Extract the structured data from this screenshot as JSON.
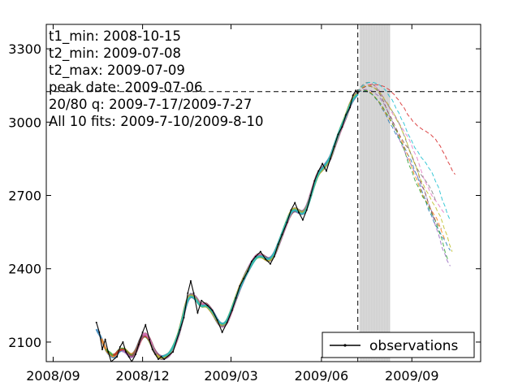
{
  "chart_data": {
    "type": "line",
    "title": "",
    "xlabel": "",
    "ylabel": "",
    "x_axis": "date",
    "xlim": [
      "2008-08-25",
      "2009-11-10"
    ],
    "ylim": [
      2020,
      3400
    ],
    "y_ticks": [
      2100,
      2400,
      2700,
      3000,
      3300
    ],
    "x_ticks": [
      "2008-09-01",
      "2008-12-01",
      "2009-03-01",
      "2009-06-01",
      "2009-09-01"
    ],
    "x_tick_labels": [
      "2008/09",
      "2008/12",
      "2009/03",
      "2009/06",
      "2009/09"
    ],
    "grid": false,
    "legend": {
      "position": "lower right",
      "entries": [
        "observations"
      ]
    },
    "annotations": [
      "t1_min: 2008-10-15",
      "t2_min: 2009-07-08",
      "t2_max: 2009-07-09",
      "peak date: 2009-07-06",
      "20/80 q: 2009-7-17/2009-7-27",
      "All 10 fits: 2009-7-10/2009-8-10"
    ],
    "reference_lines": {
      "vertical_date": "2009-07-08",
      "horizontal_value": 3125
    },
    "shaded_span": [
      "2009-07-10",
      "2009-08-10"
    ],
    "observations": {
      "name": "observations",
      "color": "#000000",
      "points": [
        [
          "2008-10-15",
          2180
        ],
        [
          "2008-10-18",
          2140
        ],
        [
          "2008-10-21",
          2070
        ],
        [
          "2008-10-24",
          2110
        ],
        [
          "2008-10-27",
          2060
        ],
        [
          "2008-10-30",
          2020
        ],
        [
          "2008-11-05",
          2040
        ],
        [
          "2008-11-08",
          2080
        ],
        [
          "2008-11-11",
          2100
        ],
        [
          "2008-11-14",
          2060
        ],
        [
          "2008-11-17",
          2040
        ],
        [
          "2008-11-20",
          2020
        ],
        [
          "2008-11-24",
          2050
        ],
        [
          "2008-11-27",
          2090
        ],
        [
          "2008-12-01",
          2140
        ],
        [
          "2008-12-04",
          2170
        ],
        [
          "2008-12-08",
          2110
        ],
        [
          "2008-12-11",
          2070
        ],
        [
          "2008-12-14",
          2050
        ],
        [
          "2008-12-17",
          2030
        ],
        [
          "2008-12-20",
          2040
        ],
        [
          "2008-12-23",
          2030
        ],
        [
          "2009-01-01",
          2060
        ],
        [
          "2009-01-08",
          2150
        ],
        [
          "2009-01-12",
          2200
        ],
        [
          "2009-01-16",
          2300
        ],
        [
          "2009-01-19",
          2350
        ],
        [
          "2009-01-22",
          2300
        ],
        [
          "2009-01-26",
          2220
        ],
        [
          "2009-01-30",
          2270
        ],
        [
          "2009-02-05",
          2250
        ],
        [
          "2009-02-10",
          2230
        ],
        [
          "2009-02-15",
          2190
        ],
        [
          "2009-02-20",
          2140
        ],
        [
          "2009-02-25",
          2180
        ],
        [
          "2009-03-02",
          2230
        ],
        [
          "2009-03-06",
          2280
        ],
        [
          "2009-03-10",
          2330
        ],
        [
          "2009-03-14",
          2360
        ],
        [
          "2009-03-18",
          2390
        ],
        [
          "2009-03-22",
          2430
        ],
        [
          "2009-03-26",
          2450
        ],
        [
          "2009-03-31",
          2470
        ],
        [
          "2009-04-05",
          2440
        ],
        [
          "2009-04-10",
          2420
        ],
        [
          "2009-04-14",
          2450
        ],
        [
          "2009-04-18",
          2500
        ],
        [
          "2009-04-22",
          2540
        ],
        [
          "2009-04-27",
          2590
        ],
        [
          "2009-05-01",
          2640
        ],
        [
          "2009-05-05",
          2670
        ],
        [
          "2009-05-09",
          2630
        ],
        [
          "2009-05-13",
          2600
        ],
        [
          "2009-05-17",
          2640
        ],
        [
          "2009-05-21",
          2700
        ],
        [
          "2009-05-25",
          2760
        ],
        [
          "2009-05-29",
          2800
        ],
        [
          "2009-06-02",
          2830
        ],
        [
          "2009-06-06",
          2800
        ],
        [
          "2009-06-10",
          2850
        ],
        [
          "2009-06-14",
          2900
        ],
        [
          "2009-06-18",
          2950
        ],
        [
          "2009-06-22",
          2980
        ],
        [
          "2009-06-26",
          3030
        ],
        [
          "2009-06-30",
          3060
        ],
        [
          "2009-07-03",
          3110
        ],
        [
          "2009-07-06",
          3130
        ],
        [
          "2009-07-08",
          3120
        ]
      ]
    },
    "fits": [
      {
        "color": "#1f77b4",
        "start": "2008-10-15",
        "end": "2009-07-08",
        "forecast_end": "2009-10-10",
        "forecast_end_value": 2450
      },
      {
        "color": "#ff7f0e",
        "start": "2008-10-20",
        "end": "2009-07-08",
        "forecast_end": "2009-10-05",
        "forecast_end_value": 2500
      },
      {
        "color": "#2ca02c",
        "start": "2008-10-25",
        "end": "2009-07-08",
        "forecast_end": "2009-10-08",
        "forecast_end_value": 2440
      },
      {
        "color": "#d62728",
        "start": "2008-11-01",
        "end": "2009-07-08",
        "forecast_end": "2009-10-15",
        "forecast_end_value": 2810
      },
      {
        "color": "#9467bd",
        "start": "2008-11-10",
        "end": "2009-07-08",
        "forecast_end": "2009-10-10",
        "forecast_end_value": 2430
      },
      {
        "color": "#8c564b",
        "start": "2008-11-20",
        "end": "2009-07-08",
        "forecast_end": "2009-10-01",
        "forecast_end_value": 2560
      },
      {
        "color": "#e377c2",
        "start": "2008-12-01",
        "end": "2009-07-08",
        "forecast_end": "2009-10-05",
        "forecast_end_value": 2600
      },
      {
        "color": "#7f7f7f",
        "start": "2008-12-10",
        "end": "2009-07-08",
        "forecast_end": "2009-09-25",
        "forecast_end_value": 2660
      },
      {
        "color": "#bcbd22",
        "start": "2008-12-15",
        "end": "2009-07-08",
        "forecast_end": "2009-10-12",
        "forecast_end_value": 2470
      },
      {
        "color": "#17becf",
        "start": "2008-12-20",
        "end": "2009-07-08",
        "forecast_end": "2009-10-10",
        "forecast_end_value": 2620
      }
    ]
  }
}
